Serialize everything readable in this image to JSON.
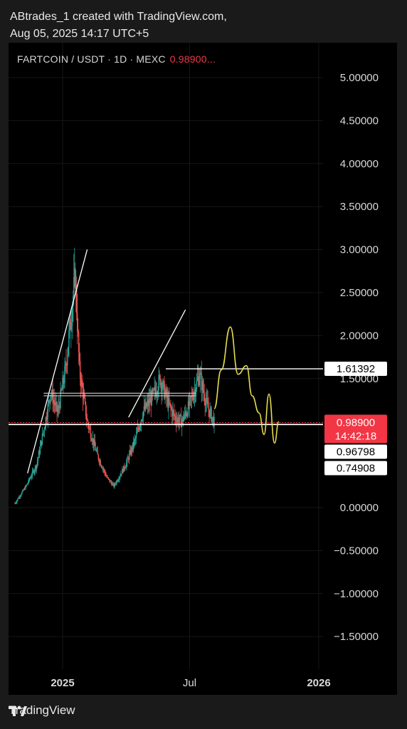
{
  "header": {
    "line1": "ABtrades_1 created with TradingView.com,",
    "line2": "Aug 05, 2025 14:17 UTC+5"
  },
  "chart_header": {
    "symbol_text": "FARTCOIN / USDT · 1D · MEXC",
    "price_text": "0.98900..."
  },
  "footer": {
    "brand": "TradingView",
    "logo_icon": "tradingview-logo-icon"
  },
  "colors": {
    "candle_up": "#26a69a",
    "candle_down": "#ef5350",
    "projection": "#e6dc4c",
    "price_label": "#f23645",
    "level_line": "#ffffff"
  },
  "chart_data": {
    "type": "candlestick",
    "title": "FARTCOIN / USDT · 1D · MEXC",
    "xlabel": "",
    "ylabel": "",
    "ylim": [
      -1.95,
      5.05
    ],
    "x_ticks": [
      "2025",
      "Jul",
      "2026"
    ],
    "y_ticks": [
      "5.00000",
      "4.50000",
      "4.00000",
      "3.50000",
      "3.00000",
      "2.50000",
      "2.00000",
      "1.50000",
      "0.00000",
      "−0.50000",
      "−1.00000",
      "−1.50000"
    ],
    "y_tick_values": [
      5.0,
      4.5,
      4.0,
      3.5,
      3.0,
      2.5,
      2.0,
      1.5,
      0.0,
      -0.5,
      -1.0,
      -1.5
    ],
    "grid": true,
    "last_price": {
      "value": 0.989,
      "label": "0.98900",
      "countdown": "14:42:18"
    },
    "levels": [
      {
        "value": 1.61392,
        "label": "1.61392"
      },
      {
        "value": 0.96798,
        "label": "0.96798"
      },
      {
        "value": 0.74908,
        "label": "0.74908"
      }
    ],
    "price_series_approx": [
      {
        "date": "2024-10-25",
        "value": 0.05
      },
      {
        "date": "2024-11-10",
        "value": 0.25
      },
      {
        "date": "2024-11-25",
        "value": 0.5
      },
      {
        "date": "2024-12-05",
        "value": 0.9
      },
      {
        "date": "2024-12-15",
        "value": 1.35
      },
      {
        "date": "2024-12-25",
        "value": 1.1
      },
      {
        "date": "2025-01-05",
        "value": 1.6
      },
      {
        "date": "2025-01-19",
        "value": 2.7
      },
      {
        "date": "2025-01-25",
        "value": 1.6
      },
      {
        "date": "2025-02-05",
        "value": 1.0
      },
      {
        "date": "2025-02-20",
        "value": 0.6
      },
      {
        "date": "2025-03-05",
        "value": 0.35
      },
      {
        "date": "2025-03-15",
        "value": 0.25
      },
      {
        "date": "2025-04-01",
        "value": 0.5
      },
      {
        "date": "2025-04-15",
        "value": 0.8
      },
      {
        "date": "2025-04-25",
        "value": 1.1
      },
      {
        "date": "2025-05-10",
        "value": 1.3
      },
      {
        "date": "2025-05-20",
        "value": 1.5
      },
      {
        "date": "2025-06-01",
        "value": 1.2
      },
      {
        "date": "2025-06-10",
        "value": 1.05
      },
      {
        "date": "2025-06-20",
        "value": 1.0
      },
      {
        "date": "2025-07-01",
        "value": 1.2
      },
      {
        "date": "2025-07-15",
        "value": 1.55
      },
      {
        "date": "2025-07-25",
        "value": 1.2
      },
      {
        "date": "2025-08-05",
        "value": 0.989
      }
    ],
    "trendlines": [
      {
        "from": {
          "date": "2024-11-12",
          "value": 0.4
        },
        "to": {
          "date": "2025-02-05",
          "value": 3.0
        }
      },
      {
        "from": {
          "date": "2025-04-05",
          "value": 1.05
        },
        "to": {
          "date": "2025-06-25",
          "value": 2.3
        }
      }
    ],
    "horizontal_segments": [
      {
        "value": 1.33,
        "from": "2024-12-05",
        "to": "2025-07-10"
      },
      {
        "value": 1.3,
        "from": "2024-12-05",
        "to": "2025-07-10"
      }
    ],
    "projection_path": [
      {
        "date": "2025-08-05",
        "value": 1.15
      },
      {
        "date": "2025-08-15",
        "value": 1.6
      },
      {
        "date": "2025-08-28",
        "value": 2.1
      },
      {
        "date": "2025-09-08",
        "value": 1.55
      },
      {
        "date": "2025-09-20",
        "value": 1.65
      },
      {
        "date": "2025-09-28",
        "value": 1.3
      },
      {
        "date": "2025-10-08",
        "value": 1.1
      },
      {
        "date": "2025-10-15",
        "value": 0.85
      },
      {
        "date": "2025-10-22",
        "value": 1.32
      },
      {
        "date": "2025-10-30",
        "value": 0.75
      },
      {
        "date": "2025-11-05",
        "value": 1.0
      }
    ]
  }
}
